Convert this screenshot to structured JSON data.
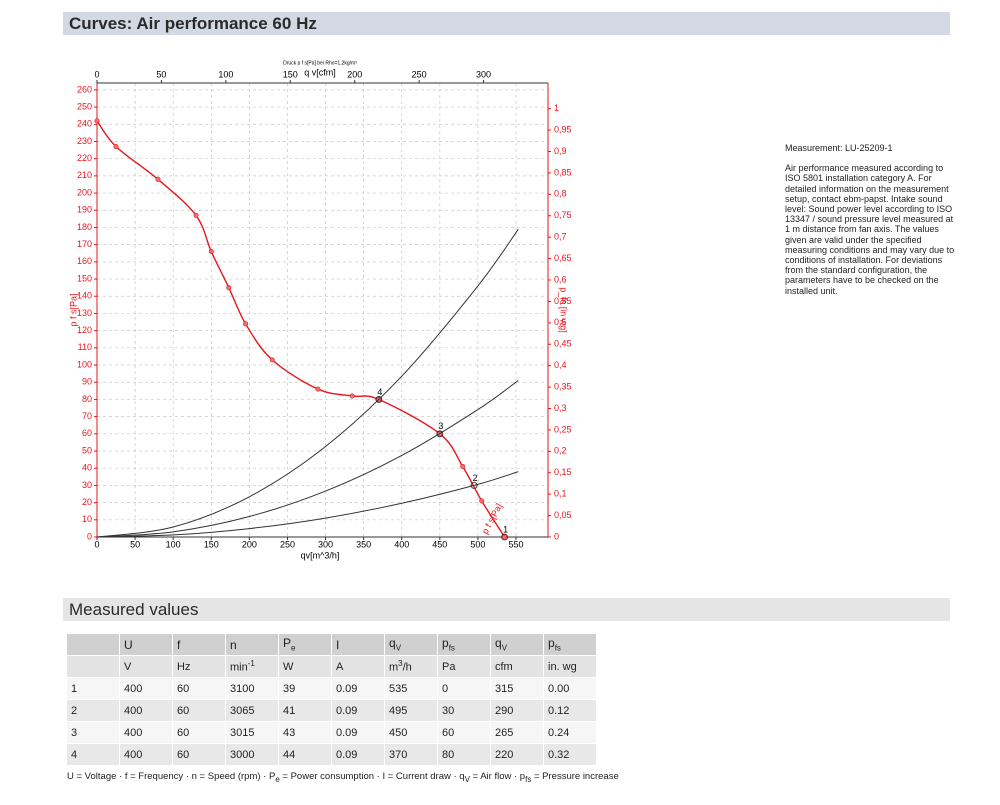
{
  "header": {
    "title": "Curves: Air performance 60 Hz"
  },
  "chart_data": {
    "type": "line",
    "title": "Druck p f s[Pa] bei Rho=1,2kg/m³",
    "x_label": "qv[m^3/h]",
    "x2_label": "q v[cfm]",
    "y_label": "p f s[Pa]",
    "y2_label": "p_fs [in wg]",
    "xlim": [
      0,
      592
    ],
    "xticks": [
      0,
      50,
      100,
      150,
      200,
      250,
      300,
      350,
      400,
      450,
      500,
      550
    ],
    "x2lim": [
      0,
      350
    ],
    "x2ticks": [
      0,
      50,
      100,
      150,
      200,
      250,
      300
    ],
    "ylim": [
      0,
      264
    ],
    "yticks": [
      0,
      10,
      20,
      30,
      40,
      50,
      60,
      70,
      80,
      90,
      100,
      110,
      120,
      130,
      140,
      150,
      160,
      170,
      180,
      190,
      200,
      210,
      220,
      230,
      240,
      250,
      260
    ],
    "y2lim": [
      0,
      1.06
    ],
    "y2ticks": [
      0,
      {
        "value": 0.05,
        "label": "0,05"
      },
      {
        "value": 0.1,
        "label": "0,1"
      },
      {
        "value": 0.15,
        "label": "0,15"
      },
      {
        "value": 0.2,
        "label": "0,2"
      },
      {
        "value": 0.25,
        "label": "0,25"
      },
      {
        "value": 0.3,
        "label": "0,3"
      },
      {
        "value": 0.35,
        "label": "0,35"
      },
      {
        "value": 0.4,
        "label": "0,4"
      },
      {
        "value": 0.45,
        "label": "0,45"
      },
      {
        "value": 0.5,
        "label": "0,5"
      },
      {
        "value": 0.55,
        "label": "0,55"
      },
      {
        "value": 0.6,
        "label": "0,6"
      },
      {
        "value": 0.65,
        "label": "0,65"
      },
      {
        "value": 0.7,
        "label": "0,7"
      },
      {
        "value": 0.75,
        "label": "0,75"
      },
      {
        "value": 0.8,
        "label": "0,8"
      },
      {
        "value": 0.85,
        "label": "0,85"
      },
      {
        "value": 0.9,
        "label": "0,9"
      },
      {
        "value": 0.95,
        "label": "0,95"
      },
      1
    ],
    "grid": true,
    "axis_color": "#e8151b",
    "series": [
      {
        "name": "p f s[Pa]",
        "color": "#e8151b",
        "markers": true,
        "x": [
          0,
          25,
          80,
          130,
          150,
          173,
          195,
          230,
          290,
          335,
          370,
          450,
          480,
          505,
          535
        ],
        "values": [
          242,
          227,
          208,
          187,
          166,
          145,
          124,
          103,
          86,
          82,
          80,
          60,
          41,
          21,
          0
        ]
      },
      {
        "color": "#333333",
        "markers": false,
        "x": [
          0,
          100,
          200,
          300,
          400,
          500,
          553
        ],
        "values": [
          0,
          5.8,
          23.4,
          52.6,
          93.5,
          146,
          179
        ]
      },
      {
        "color": "#333333",
        "markers": false,
        "x": [
          0,
          100,
          200,
          300,
          400,
          500,
          553
        ],
        "values": [
          0,
          3,
          11.9,
          26.7,
          47.4,
          74.1,
          91
        ]
      },
      {
        "color": "#333333",
        "markers": false,
        "x": [
          0,
          100,
          200,
          300,
          400,
          500,
          553
        ],
        "values": [
          0,
          1.2,
          4.9,
          11,
          19.6,
          30.6,
          38
        ]
      }
    ],
    "operating_points": {
      "labels": [
        "1",
        "2",
        "3",
        "4"
      ],
      "x": [
        535,
        495,
        450,
        370
      ],
      "values": [
        0,
        30,
        60,
        80
      ]
    }
  },
  "note": {
    "measurement": "Measurement: LU-25209-1",
    "text": "Air performance measured according to ISO 5801 installation category A. For detailed information on the measurement setup, contact ebm-papst. Intake sound level: Sound power level according to ISO 13347 / sound pressure level measured at 1 m distance from fan axis. The values given are valid under the specified measuring conditions and may vary due to conditions of installation. For deviations from the standard configuration, the parameters have to be checked on the installed unit."
  },
  "measured_values": {
    "title": "Measured values",
    "header": [
      null,
      {
        "text": "U"
      },
      {
        "text": "f"
      },
      {
        "text": "n"
      },
      {
        "text": "P",
        "sub": "e"
      },
      {
        "text": "I"
      },
      {
        "text": "q",
        "sub": "V"
      },
      {
        "text": "p",
        "sub": "fs"
      },
      {
        "text": "q",
        "sub": "V"
      },
      {
        "text": "p",
        "sub": "fs"
      }
    ],
    "units": [
      null,
      {
        "text": "V"
      },
      {
        "text": "Hz"
      },
      {
        "text": "min",
        "sup": "-1"
      },
      {
        "text": "W"
      },
      {
        "text": "A"
      },
      {
        "text": "m",
        "sup": "3",
        "tail": "/h"
      },
      {
        "text": "Pa"
      },
      {
        "text": "cfm"
      },
      {
        "text": "in. wg"
      }
    ],
    "rows": [
      [
        "1",
        "400",
        "60",
        "3100",
        "39",
        "0.09",
        "535",
        "0",
        "315",
        "0.00"
      ],
      [
        "2",
        "400",
        "60",
        "3065",
        "41",
        "0.09",
        "495",
        "30",
        "290",
        "0.12"
      ],
      [
        "3",
        "400",
        "60",
        "3015",
        "43",
        "0.09",
        "450",
        "60",
        "265",
        "0.24"
      ],
      [
        "4",
        "400",
        "60",
        "3000",
        "44",
        "0.09",
        "370",
        "80",
        "220",
        "0.32"
      ]
    ],
    "footnote": [
      {
        "text": "U = Voltage · f = Frequency · n = Speed (rpm) · P",
        "sub": "e"
      },
      {
        "text": " = Power consumption · I = Current draw · q",
        "sub": "V"
      },
      {
        "text": " = Air flow · p",
        "sub": "fs"
      },
      {
        "text": " = Pressure increase"
      }
    ]
  }
}
